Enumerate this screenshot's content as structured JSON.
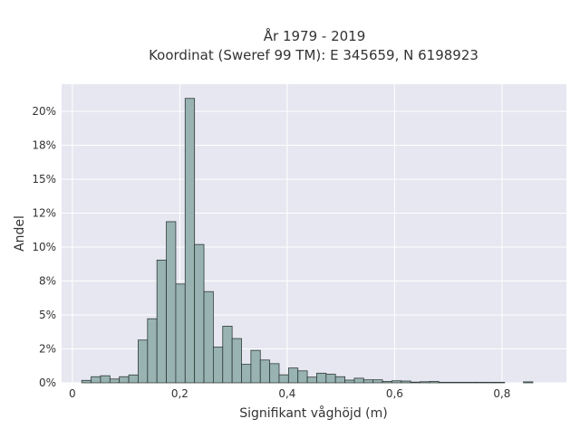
{
  "chart_data": {
    "type": "bar",
    "title_line1": "År 1979 - 2019",
    "title_line2": "Koordinat (Sweref 99 TM): E 345659, N 6198923",
    "xlabel": "Signifikant våghöjd (m)",
    "ylabel": "Andel",
    "xlim": [
      -0.02,
      0.92
    ],
    "ylim": [
      0,
      0.22
    ],
    "grid": true,
    "legend": "none",
    "x_ticks": [
      {
        "value": 0.0,
        "label": "0"
      },
      {
        "value": 0.2,
        "label": "0,2"
      },
      {
        "value": 0.4,
        "label": "0,4"
      },
      {
        "value": 0.6,
        "label": "0,6"
      },
      {
        "value": 0.8,
        "label": "0,8"
      }
    ],
    "y_ticks": [
      {
        "value": 0.0,
        "label": "0%"
      },
      {
        "value": 0.025,
        "label": "2%"
      },
      {
        "value": 0.05,
        "label": "5%"
      },
      {
        "value": 0.075,
        "label": "8%"
      },
      {
        "value": 0.1,
        "label": "10%"
      },
      {
        "value": 0.125,
        "label": "12%"
      },
      {
        "value": 0.15,
        "label": "15%"
      },
      {
        "value": 0.175,
        "label": "18%"
      },
      {
        "value": 0.2,
        "label": "20%"
      }
    ],
    "bin_width": 0.0175,
    "bin_starts": [
      0.0175,
      0.035,
      0.0525,
      0.07,
      0.0875,
      0.105,
      0.1225,
      0.14,
      0.1575,
      0.175,
      0.1925,
      0.21,
      0.2275,
      0.245,
      0.2625,
      0.28,
      0.2975,
      0.315,
      0.3325,
      0.35,
      0.3675,
      0.385,
      0.4025,
      0.42,
      0.4375,
      0.455,
      0.4725,
      0.49,
      0.5075,
      0.525,
      0.5425,
      0.56,
      0.5775,
      0.595,
      0.6125,
      0.63,
      0.6475,
      0.665,
      0.6825,
      0.7,
      0.7175,
      0.735,
      0.7525,
      0.77,
      0.7875,
      0.805,
      0.8225,
      0.84
    ],
    "values": [
      0.0018,
      0.0045,
      0.0052,
      0.0028,
      0.0045,
      0.0058,
      0.0315,
      0.0472,
      0.0904,
      0.1187,
      0.0728,
      0.2095,
      0.1019,
      0.0672,
      0.0263,
      0.0417,
      0.0326,
      0.0136,
      0.0239,
      0.0168,
      0.0141,
      0.0059,
      0.0109,
      0.0088,
      0.0042,
      0.0071,
      0.0063,
      0.0045,
      0.002,
      0.0034,
      0.0022,
      0.0022,
      0.001,
      0.0015,
      0.0013,
      0.0005,
      0.0008,
      0.001,
      0.0004,
      0.0004,
      0.0004,
      0.0004,
      0.0004,
      0.0004,
      0.0004,
      0.0,
      0.0,
      0.0007
    ],
    "colors": {
      "bar_fill": "#98b3b1",
      "bar_stroke": "#2f3b3a",
      "plot_bg": "#e6e7f0",
      "grid": "#ffffff",
      "text": "#333333"
    }
  }
}
